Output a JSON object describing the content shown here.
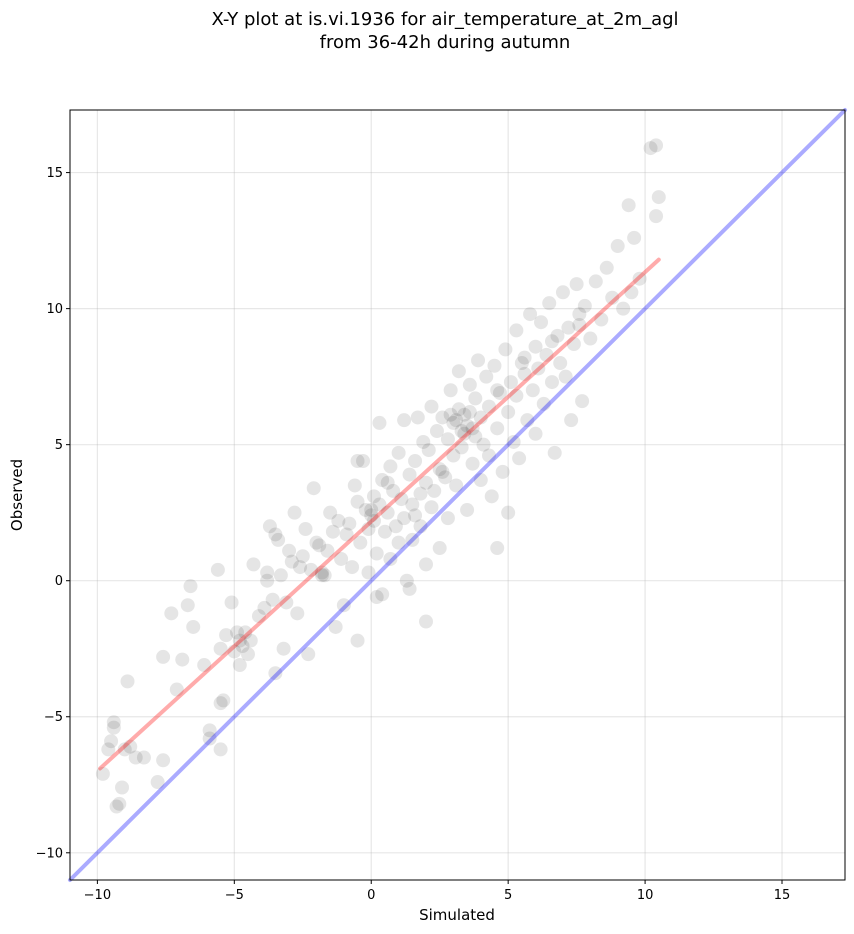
{
  "chart_data": {
    "type": "scatter",
    "title": [
      "X-Y plot at is.vi.1936 for air_temperature_at_2m_agl",
      "from 36-42h during autumn"
    ],
    "xlabel": "Simulated",
    "ylabel": "Observed",
    "xlim": [
      -11,
      17.3
    ],
    "ylim": [
      -11,
      17.3
    ],
    "xticks": [
      -10,
      -5,
      0,
      5,
      10,
      15
    ],
    "yticks": [
      -10,
      -5,
      0,
      5,
      10,
      15
    ],
    "xtick_labels": [
      "−10",
      "−5",
      "0",
      "5",
      "10",
      "15"
    ],
    "ytick_labels": [
      "−10",
      "−5",
      "0",
      "5",
      "10",
      "15"
    ],
    "grid": true,
    "colors": {
      "points": "#000000",
      "regression_line": "#ff0000",
      "identity_line": "#0000ff"
    },
    "point_opacity": 0.1,
    "series": [
      {
        "type": "scatter",
        "points": [
          [
            -9.8,
            -7.1
          ],
          [
            -9.6,
            -6.2
          ],
          [
            -9.5,
            -5.9
          ],
          [
            -9.4,
            -5.4
          ],
          [
            -9.4,
            -5.2
          ],
          [
            -9.3,
            -8.3
          ],
          [
            -9.2,
            -8.2
          ],
          [
            -9.1,
            -7.6
          ],
          [
            -9.0,
            -6.2
          ],
          [
            -8.8,
            -6.1
          ],
          [
            -8.9,
            -3.7
          ],
          [
            -8.6,
            -6.5
          ],
          [
            -8.3,
            -6.5
          ],
          [
            -7.8,
            -7.4
          ],
          [
            -7.6,
            -6.6
          ],
          [
            -7.6,
            -2.8
          ],
          [
            -7.3,
            -1.2
          ],
          [
            -7.1,
            -4.0
          ],
          [
            -6.9,
            -2.9
          ],
          [
            -6.7,
            -0.9
          ],
          [
            -6.6,
            -0.2
          ],
          [
            -6.5,
            -1.7
          ],
          [
            -6.1,
            -3.1
          ],
          [
            -5.9,
            -5.8
          ],
          [
            -5.9,
            -5.5
          ],
          [
            -5.6,
            0.4
          ],
          [
            -5.5,
            -6.2
          ],
          [
            -5.5,
            -4.5
          ],
          [
            -5.4,
            -4.4
          ],
          [
            -5.5,
            -2.5
          ],
          [
            -5.3,
            -2.0
          ],
          [
            -5.1,
            -0.8
          ],
          [
            -5.0,
            -2.6
          ],
          [
            -4.9,
            -1.9
          ],
          [
            -4.8,
            -2.2
          ],
          [
            -4.8,
            -3.1
          ],
          [
            -4.6,
            -1.9
          ],
          [
            -4.7,
            -2.4
          ],
          [
            -4.5,
            -2.7
          ],
          [
            -4.4,
            -2.2
          ],
          [
            -4.3,
            0.6
          ],
          [
            -4.1,
            -1.3
          ],
          [
            -3.9,
            -1.0
          ],
          [
            -3.8,
            0.0
          ],
          [
            -3.8,
            0.3
          ],
          [
            -3.7,
            2.0
          ],
          [
            -3.6,
            -0.7
          ],
          [
            -3.5,
            1.7
          ],
          [
            -3.4,
            1.5
          ],
          [
            -3.5,
            -3.4
          ],
          [
            -3.3,
            0.2
          ],
          [
            -3.2,
            -2.5
          ],
          [
            -3.1,
            -0.8
          ],
          [
            -3.0,
            1.1
          ],
          [
            -2.9,
            0.7
          ],
          [
            -2.8,
            2.5
          ],
          [
            -2.7,
            -1.2
          ],
          [
            -2.6,
            0.5
          ],
          [
            -2.5,
            0.9
          ],
          [
            -2.4,
            1.9
          ],
          [
            -2.3,
            -2.7
          ],
          [
            -2.2,
            0.4
          ],
          [
            -2.1,
            3.4
          ],
          [
            -2.0,
            1.4
          ],
          [
            -1.9,
            1.3
          ],
          [
            -1.8,
            0.2
          ],
          [
            -1.8,
            0.3
          ],
          [
            -1.7,
            0.2
          ],
          [
            -1.6,
            1.1
          ],
          [
            -1.5,
            2.5
          ],
          [
            -1.4,
            1.8
          ],
          [
            -1.3,
            -1.7
          ],
          [
            -1.2,
            2.2
          ],
          [
            -1.1,
            0.8
          ],
          [
            -1.0,
            -0.9
          ],
          [
            -0.9,
            1.7
          ],
          [
            -0.8,
            2.1
          ],
          [
            -0.7,
            0.5
          ],
          [
            -0.6,
            3.5
          ],
          [
            -0.5,
            2.9
          ],
          [
            -0.5,
            -2.2
          ],
          [
            -0.4,
            1.4
          ],
          [
            -0.3,
            4.4
          ],
          [
            -0.2,
            2.6
          ],
          [
            -0.1,
            1.9
          ],
          [
            -0.1,
            0.3
          ],
          [
            0.0,
            2.4
          ],
          [
            0.0,
            2.6
          ],
          [
            0.1,
            2.2
          ],
          [
            0.1,
            3.1
          ],
          [
            0.2,
            1.0
          ],
          [
            0.2,
            -0.6
          ],
          [
            0.3,
            2.8
          ],
          [
            0.3,
            5.8
          ],
          [
            0.4,
            3.7
          ],
          [
            0.5,
            1.8
          ],
          [
            0.6,
            2.5
          ],
          [
            0.7,
            4.2
          ],
          [
            0.7,
            0.8
          ],
          [
            0.8,
            3.3
          ],
          [
            0.9,
            2.0
          ],
          [
            1.0,
            4.7
          ],
          [
            1.0,
            1.4
          ],
          [
            1.1,
            3.0
          ],
          [
            1.2,
            2.3
          ],
          [
            1.2,
            5.9
          ],
          [
            1.3,
            0.0
          ],
          [
            1.4,
            3.9
          ],
          [
            1.5,
            2.8
          ],
          [
            1.5,
            1.5
          ],
          [
            1.6,
            4.4
          ],
          [
            1.7,
            6.0
          ],
          [
            1.8,
            3.2
          ],
          [
            1.8,
            2.0
          ],
          [
            1.9,
            5.1
          ],
          [
            2.0,
            0.6
          ],
          [
            2.0,
            3.6
          ],
          [
            2.1,
            4.8
          ],
          [
            2.2,
            2.7
          ],
          [
            2.2,
            6.4
          ],
          [
            2.3,
            3.3
          ],
          [
            2.4,
            5.5
          ],
          [
            2.5,
            1.2
          ],
          [
            2.5,
            4.1
          ],
          [
            2.6,
            6.0
          ],
          [
            2.7,
            3.8
          ],
          [
            2.8,
            5.2
          ],
          [
            2.8,
            2.3
          ],
          [
            2.9,
            7.0
          ],
          [
            3.0,
            4.6
          ],
          [
            3.0,
            5.8
          ],
          [
            3.1,
            3.5
          ],
          [
            3.2,
            6.3
          ],
          [
            3.2,
            7.7
          ],
          [
            3.3,
            4.9
          ],
          [
            3.3,
            5.5
          ],
          [
            3.4,
            6.1
          ],
          [
            3.5,
            2.6
          ],
          [
            3.5,
            5.7
          ],
          [
            3.6,
            7.2
          ],
          [
            3.7,
            4.3
          ],
          [
            3.8,
            6.7
          ],
          [
            3.8,
            5.3
          ],
          [
            3.9,
            8.1
          ],
          [
            4.0,
            3.7
          ],
          [
            4.0,
            6.0
          ],
          [
            4.1,
            5.0
          ],
          [
            4.2,
            7.5
          ],
          [
            4.3,
            4.6
          ],
          [
            4.3,
            6.4
          ],
          [
            4.4,
            3.1
          ],
          [
            4.5,
            7.9
          ],
          [
            4.6,
            5.6
          ],
          [
            4.6,
            1.2
          ],
          [
            4.7,
            6.9
          ],
          [
            4.8,
            4.0
          ],
          [
            4.9,
            8.5
          ],
          [
            5.0,
            6.2
          ],
          [
            5.0,
            2.5
          ],
          [
            5.1,
            7.3
          ],
          [
            5.2,
            5.1
          ],
          [
            5.3,
            9.2
          ],
          [
            5.3,
            6.8
          ],
          [
            5.4,
            4.5
          ],
          [
            5.5,
            8.0
          ],
          [
            5.6,
            7.6
          ],
          [
            5.7,
            5.9
          ],
          [
            5.8,
            9.8
          ],
          [
            5.9,
            7.0
          ],
          [
            6.0,
            8.6
          ],
          [
            6.0,
            5.4
          ],
          [
            6.1,
            7.8
          ],
          [
            6.2,
            9.5
          ],
          [
            6.3,
            6.5
          ],
          [
            6.4,
            8.3
          ],
          [
            6.5,
            10.2
          ],
          [
            6.6,
            7.3
          ],
          [
            6.7,
            4.7
          ],
          [
            6.8,
            9.0
          ],
          [
            6.9,
            8.0
          ],
          [
            7.0,
            10.6
          ],
          [
            7.1,
            7.5
          ],
          [
            7.2,
            9.3
          ],
          [
            7.3,
            5.9
          ],
          [
            7.4,
            8.7
          ],
          [
            7.5,
            10.9
          ],
          [
            7.6,
            9.8
          ],
          [
            7.7,
            6.6
          ],
          [
            7.8,
            10.1
          ],
          [
            8.0,
            8.9
          ],
          [
            8.2,
            11.0
          ],
          [
            8.4,
            9.6
          ],
          [
            8.6,
            11.5
          ],
          [
            8.8,
            10.4
          ],
          [
            9.0,
            12.3
          ],
          [
            9.2,
            10.0
          ],
          [
            9.4,
            13.8
          ],
          [
            9.5,
            10.6
          ],
          [
            9.6,
            12.6
          ],
          [
            9.8,
            11.1
          ],
          [
            10.2,
            15.9
          ],
          [
            10.4,
            16.0
          ],
          [
            10.4,
            13.4
          ],
          [
            10.5,
            14.1
          ],
          [
            0.4,
            -0.5
          ],
          [
            1.4,
            -0.3
          ],
          [
            2.0,
            -1.5
          ],
          [
            -0.5,
            4.4
          ],
          [
            0.6,
            3.6
          ],
          [
            1.6,
            2.4
          ],
          [
            2.6,
            4.0
          ],
          [
            3.6,
            6.2
          ],
          [
            4.6,
            7.0
          ],
          [
            5.6,
            8.2
          ],
          [
            6.6,
            8.8
          ],
          [
            7.6,
            9.4
          ],
          [
            3.1,
            5.9
          ],
          [
            3.4,
            5.4
          ],
          [
            2.9,
            6.1
          ],
          [
            3.7,
            5.6
          ]
        ]
      },
      {
        "type": "line",
        "name": "",
        "role": "regression",
        "x": [
          -9.9,
          10.5
        ],
        "y": [
          -6.9,
          11.8
        ]
      },
      {
        "type": "line",
        "name": "",
        "role": "identity",
        "x": [
          -11,
          17.3
        ],
        "y": [
          -11,
          17.3
        ]
      }
    ]
  }
}
